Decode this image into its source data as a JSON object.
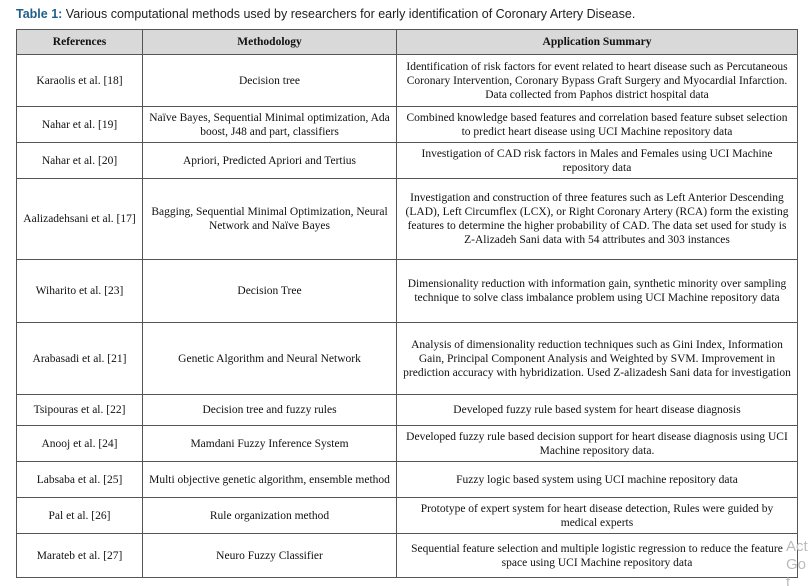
{
  "caption": {
    "label": "Table 1:",
    "text": "Various computational methods used by researchers for early identification of Coronary Artery Disease."
  },
  "table": {
    "header": [
      "References",
      "Methodology",
      "Application Summary"
    ],
    "rows": [
      [
        "Karaolis et al. [18]",
        "Decision tree",
        "Identification of risk factors for event related to heart disease such as Percutaneous Coronary Intervention, Coronary Bypass Graft Surgery and Myocardial Infarction. Data collected from Paphos district hospital data"
      ],
      [
        "Nahar et al. [19]",
        "Naïve Bayes, Sequential Minimal optimization, Ada boost, J48 and part, classifiers",
        "Combined knowledge based features and correlation based feature subset selection to predict heart disease using UCI Machine repository data"
      ],
      [
        "Nahar et al. [20]",
        "Apriori, Predicted Apriori and Tertius",
        "Investigation of CAD risk factors in Males and Females using UCI Machine repository data"
      ],
      [
        "Aalizadehsani et al. [17]",
        "Bagging, Sequential Minimal Optimization, Neural Network and Naïve Bayes",
        "Investigation and construction of three features such as Left Anterior Descending (LAD), Left Circumflex (LCX), or Right Coronary Artery (RCA) form the existing features to determine the higher probability of CAD. The data set used for study is Z-Alizadeh Sani data with 54 attributes and 303 instances"
      ],
      [
        "Wiharito et al. [23]",
        "Decision Tree",
        "Dimensionality reduction with information gain, synthetic minority over sampling technique to solve class imbalance problem using UCI Machine repository data"
      ],
      [
        "Arabasadi et al. [21]",
        "Genetic Algorithm and Neural Network",
        "Analysis of dimensionality reduction techniques such as Gini Index, Information Gain, Principal Component Analysis and Weighted by SVM. Improvement in prediction accuracy with hybridization. Used Z-alizadesh Sani data for investigation"
      ],
      [
        "Tsipouras et al. [22]",
        "Decision tree and fuzzy rules",
        "Developed fuzzy rule based system for heart disease diagnosis"
      ],
      [
        "Anooj et al. [24]",
        "Mamdani Fuzzy Inference System",
        "Developed fuzzy rule based decision support for heart disease diagnosis using UCI Machine repository data."
      ],
      [
        "Labsaba et al. [25]",
        "Multi objective genetic algorithm, ensemble method",
        "Fuzzy logic based system using UCI machine repository data"
      ],
      [
        "Pal et al. [26]",
        "Rule organization method",
        "Prototype of expert system for heart disease detection, Rules were guided by medical experts"
      ],
      [
        "Marateb et al. [27]",
        "Neuro Fuzzy Classifier",
        "Sequential feature selection and multiple logistic regression to reduce the feature space using UCI Machine repository data"
      ]
    ]
  },
  "watermark": [
    "Act",
    "Go t"
  ]
}
